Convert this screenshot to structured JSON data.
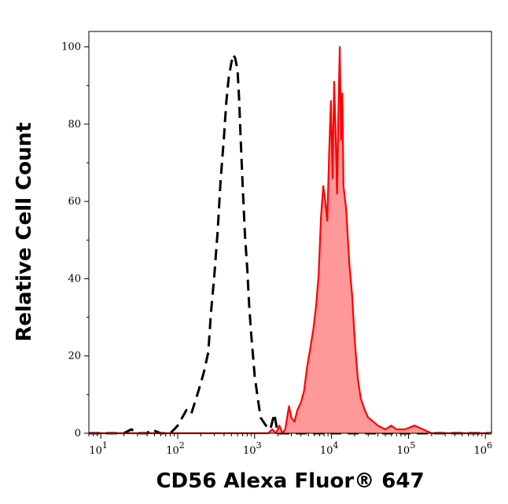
{
  "chart_data": {
    "type": "area",
    "xlabel": "CD56 Alexa Fluor® 647",
    "ylabel": "Relative Cell Count",
    "xscale": "log",
    "xlim": [
      7,
      1200000
    ],
    "ylim": [
      0,
      104
    ],
    "x_tick_labels": [
      {
        "value": 10,
        "base": "10",
        "exp": "1"
      },
      {
        "value": 100,
        "base": "10",
        "exp": "2"
      },
      {
        "value": 1000,
        "base": "10",
        "exp": "3"
      },
      {
        "value": 10000,
        "base": "10",
        "exp": "4"
      },
      {
        "value": 100000,
        "base": "10",
        "exp": "5"
      },
      {
        "value": 1000000,
        "base": "10",
        "exp": "6"
      }
    ],
    "y_tick_labels": [
      "0",
      "20",
      "40",
      "60",
      "80",
      "100"
    ],
    "y_ticks": [
      0,
      20,
      40,
      60,
      80,
      100
    ],
    "grid": false,
    "series": [
      {
        "style": "dashed",
        "color": "#000000",
        "fill": "none",
        "x": [
          7,
          20,
          25,
          30,
          40,
          45,
          60,
          80,
          90,
          100,
          130,
          150,
          180,
          200,
          220,
          250,
          270,
          300,
          330,
          360,
          400,
          430,
          460,
          500,
          530,
          560,
          600,
          630,
          660,
          700,
          750,
          800,
          850,
          900,
          1000,
          1100,
          1200,
          1400,
          1600,
          1800,
          2000,
          2500,
          5000,
          1200000
        ],
        "y": [
          0,
          0,
          1,
          0,
          0,
          1,
          0,
          0,
          1,
          2,
          6,
          5,
          10,
          13,
          16,
          21,
          31,
          41,
          52,
          65,
          77,
          86,
          92,
          96,
          98,
          97,
          94,
          86,
          76,
          64,
          51,
          43,
          33,
          26,
          15,
          9,
          4,
          2,
          1,
          5,
          0,
          0,
          0,
          0
        ]
      },
      {
        "style": "solid",
        "color": "#ff0000",
        "fill": "#ff9999",
        "x": [
          7,
          1500,
          1700,
          1900,
          2100,
          2300,
          2500,
          2800,
          3000,
          3300,
          3600,
          4000,
          4400,
          4800,
          5300,
          5800,
          6300,
          6800,
          7300,
          7800,
          8300,
          8800,
          9300,
          9800,
          10300,
          10800,
          11300,
          11800,
          12300,
          12800,
          13300,
          13800,
          14300,
          15500,
          17000,
          18500,
          20000,
          22000,
          24000,
          27000,
          30000,
          35000,
          40000,
          50000,
          60000,
          70000,
          90000,
          120000,
          200000,
          1200000
        ],
        "y": [
          0,
          0,
          1,
          0,
          2,
          0,
          1,
          7,
          4,
          3,
          6,
          8,
          11,
          17,
          22,
          27,
          33,
          41,
          56,
          64,
          60,
          55,
          72,
          86,
          66,
          91,
          78,
          62,
          84,
          100,
          76,
          88,
          64,
          58,
          44,
          36,
          24,
          14,
          9,
          6,
          4,
          3,
          2,
          1,
          2,
          1,
          1,
          2,
          0,
          0
        ]
      }
    ]
  }
}
